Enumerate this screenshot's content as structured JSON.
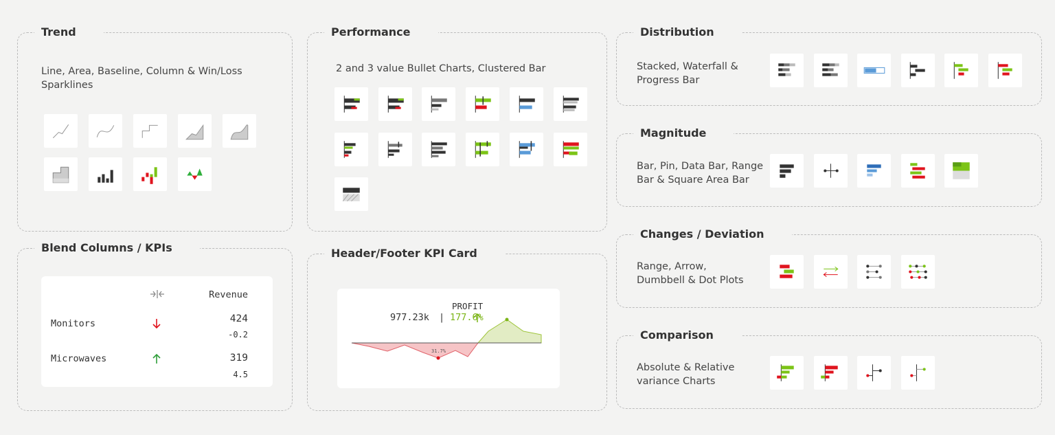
{
  "trend": {
    "title": "Trend",
    "description": "Line, Area, Baseline, Column & Win/Loss Sparklines"
  },
  "performance": {
    "title": "Performance",
    "description": "2 and 3 value Bullet Charts, Clustered Bar"
  },
  "distribution": {
    "title": "Distribution",
    "description": "Stacked, Waterfall & Progress Bar"
  },
  "magnitude": {
    "title": "Magnitude",
    "description": "Bar, Pin, Data Bar, Range Bar & Square Area Bar"
  },
  "changes": {
    "title": "Changes / Deviation",
    "description": "Range, Arrow, Dumbbell & Dot Plots"
  },
  "comparison": {
    "title": "Comparison",
    "description": "Absolute & Relative variance Charts"
  },
  "blend": {
    "title": "Blend Columns / KPIs",
    "table": {
      "header": "Revenue",
      "rows": [
        {
          "label": "Monitors",
          "value": 424,
          "change": -0.2
        },
        {
          "label": "Microwaves",
          "value": 319,
          "change": 4.5
        }
      ]
    }
  },
  "kpi_card": {
    "title": "Header/Footer KPI Card",
    "label": "PROFIT",
    "value": "977.23k",
    "separator": "|",
    "change": "177.6%",
    "min_label": "31.7%"
  }
}
